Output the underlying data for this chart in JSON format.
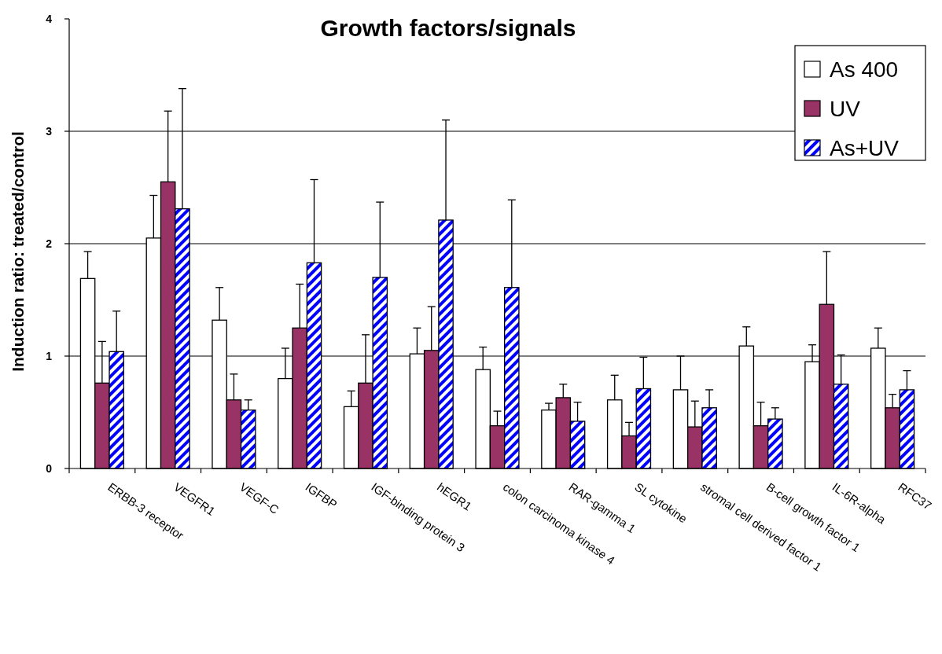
{
  "chart_data": {
    "type": "bar",
    "title": "Growth factors/signals",
    "ylabel": "Induction ratio: treated/control",
    "categories": [
      "ERBB-3 receptor",
      "VEGFR1",
      "VEGF-C",
      "IGFBP",
      "IGF-binding protein 3",
      "hEGR1",
      "colon carcinoma kinase 4",
      "RAR-gamma 1",
      "SL cytokine",
      "stromal cell derived factor 1",
      "B-cell growth factor 1",
      "IL-6R-alpha",
      "RFC37"
    ],
    "series": [
      {
        "name": "As 400",
        "color": "#ffffff",
        "values": [
          1.69,
          2.05,
          1.32,
          0.8,
          0.55,
          1.02,
          0.88,
          0.52,
          0.61,
          0.7,
          1.09,
          0.95,
          1.07
        ],
        "errors": [
          [
            1.69,
            1.93
          ],
          [
            2.05,
            2.43
          ],
          [
            1.32,
            1.61
          ],
          [
            0.8,
            1.07
          ],
          [
            0.55,
            0.69
          ],
          [
            1.02,
            1.25
          ],
          [
            0.88,
            1.08
          ],
          [
            0.52,
            0.58
          ],
          [
            0.61,
            0.83
          ],
          [
            0.7,
            1.0
          ],
          [
            1.09,
            1.26
          ],
          [
            0.95,
            1.1
          ],
          [
            1.07,
            1.25
          ]
        ]
      },
      {
        "name": "UV",
        "color": "#993366",
        "values": [
          0.76,
          2.55,
          0.61,
          1.25,
          0.76,
          1.05,
          0.38,
          0.63,
          0.29,
          0.37,
          0.38,
          1.46,
          0.54
        ],
        "errors": [
          [
            0.76,
            1.13
          ],
          [
            2.55,
            3.18
          ],
          [
            0.61,
            0.84
          ],
          [
            1.25,
            1.64
          ],
          [
            0.76,
            1.19
          ],
          [
            1.05,
            1.44
          ],
          [
            0.38,
            0.51
          ],
          [
            0.63,
            0.75
          ],
          [
            0.29,
            0.41
          ],
          [
            0.37,
            0.6
          ],
          [
            0.38,
            0.59
          ],
          [
            1.46,
            1.93
          ],
          [
            0.54,
            0.66
          ]
        ]
      },
      {
        "name": "As+UV",
        "color": "#0000ff",
        "values": [
          1.04,
          2.31,
          0.52,
          1.83,
          1.7,
          2.21,
          1.61,
          0.42,
          0.71,
          0.54,
          0.44,
          0.75,
          0.7
        ],
        "errors": [
          [
            1.04,
            1.4
          ],
          [
            2.31,
            3.38
          ],
          [
            0.52,
            0.61
          ],
          [
            1.83,
            2.57
          ],
          [
            1.7,
            2.37
          ],
          [
            2.21,
            3.1
          ],
          [
            1.61,
            2.39
          ],
          [
            0.42,
            0.59
          ],
          [
            0.71,
            0.99
          ],
          [
            0.54,
            0.7
          ],
          [
            0.44,
            0.54
          ],
          [
            0.75,
            1.01
          ],
          [
            0.7,
            0.87
          ]
        ]
      }
    ],
    "ylim": [
      0,
      4
    ],
    "yticks": [
      0,
      1,
      2,
      3,
      4
    ],
    "grid": "y",
    "legend": "top right"
  }
}
